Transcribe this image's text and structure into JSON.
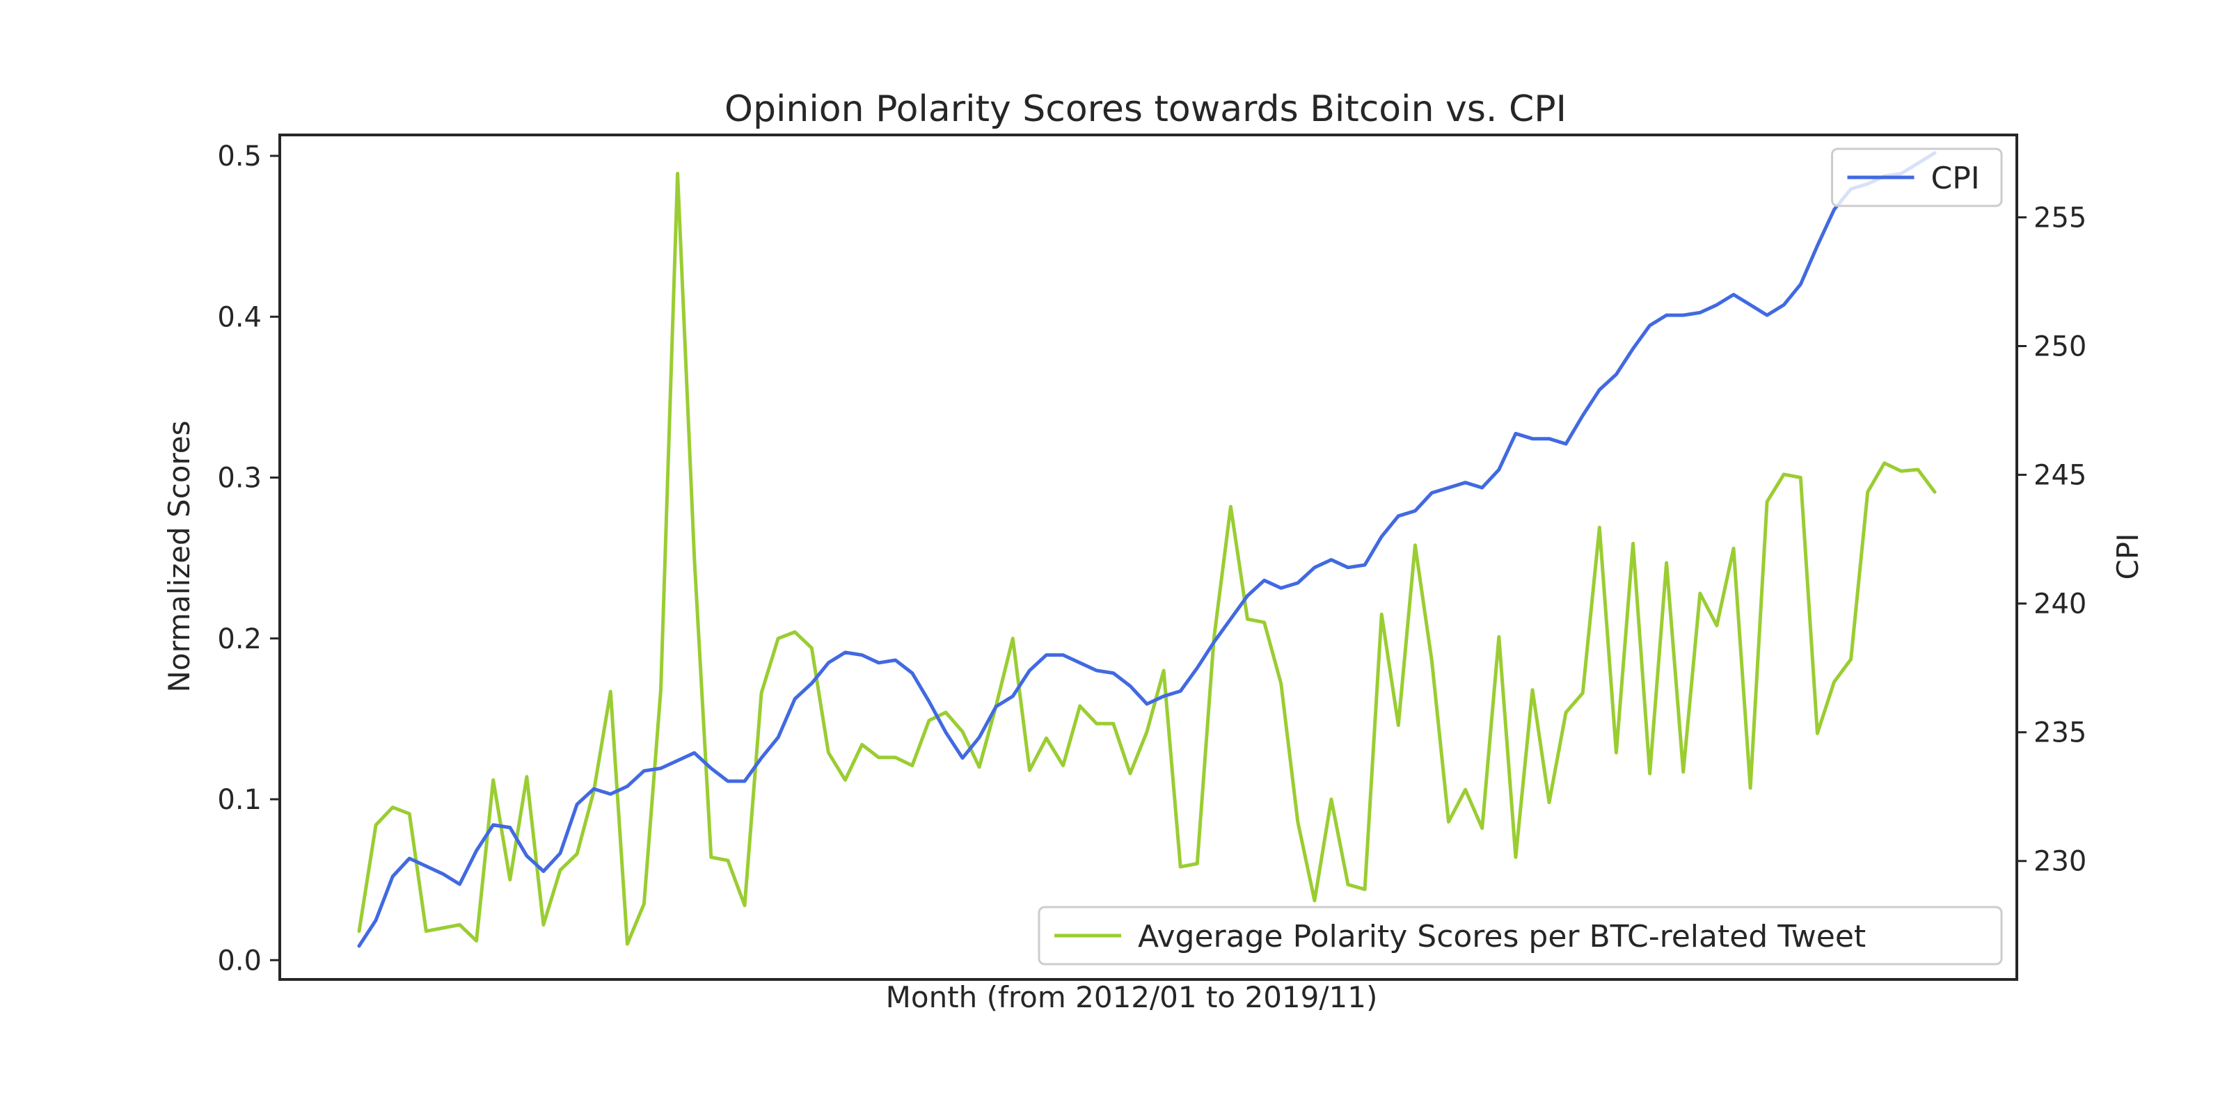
{
  "chart_data": {
    "type": "line",
    "title": "Opinion Polarity Scores towards Bitcoin vs. CPI",
    "xlabel": "Month (from 2012/01 to 2019/11)",
    "ylabel": "Normalized Scores",
    "y2label": "CPI",
    "ylim": [
      -0.012,
      0.513
    ],
    "y2lim": [
      225.4,
      258.2
    ],
    "yticks": [
      "0.0",
      "0.1",
      "0.2",
      "0.3",
      "0.4",
      "0.5"
    ],
    "y2ticks": [
      "230",
      "235",
      "240",
      "245",
      "250",
      "255"
    ],
    "x_range": [
      1,
      95
    ],
    "grid": false,
    "series": [
      {
        "name": "CPI",
        "axis": "right",
        "color": "#4169e1",
        "legend_position": "top-right",
        "values": [
          226.7,
          227.7,
          229.4,
          230.1,
          229.8,
          229.5,
          229.1,
          230.4,
          231.4,
          231.3,
          230.2,
          229.6,
          230.3,
          232.2,
          232.8,
          232.6,
          232.9,
          233.5,
          233.6,
          233.9,
          234.2,
          233.6,
          233.1,
          233.1,
          234.0,
          234.8,
          236.3,
          236.9,
          237.7,
          238.1,
          238.0,
          237.7,
          237.8,
          237.3,
          236.2,
          235.0,
          234.0,
          234.8,
          236.0,
          236.4,
          237.4,
          238.0,
          238.0,
          237.7,
          237.4,
          237.3,
          236.8,
          236.1,
          236.4,
          236.6,
          237.5,
          238.5,
          239.4,
          240.3,
          240.9,
          240.6,
          240.8,
          241.4,
          241.7,
          241.4,
          241.5,
          242.6,
          243.4,
          243.6,
          244.3,
          244.5,
          244.7,
          244.5,
          245.2,
          246.6,
          246.4,
          246.4,
          246.2,
          247.3,
          248.3,
          248.9,
          249.9,
          250.8,
          251.2,
          251.2,
          251.3,
          251.6,
          252.0,
          251.6,
          251.2,
          251.6,
          252.4,
          253.9,
          255.3,
          256.1,
          256.3,
          256.6,
          256.7,
          257.1,
          257.5
        ]
      },
      {
        "name": "Avgerage Polarity Scores per BTC-related Tweet",
        "axis": "left",
        "color": "#9acd32",
        "legend_position": "bottom-right",
        "values": [
          0.018,
          0.084,
          0.095,
          0.091,
          0.018,
          0.02,
          0.022,
          0.012,
          0.112,
          0.05,
          0.114,
          0.022,
          0.056,
          0.066,
          0.105,
          0.167,
          0.01,
          0.035,
          0.168,
          0.489,
          0.25,
          0.064,
          0.062,
          0.034,
          0.166,
          0.2,
          0.204,
          0.194,
          0.129,
          0.112,
          0.134,
          0.126,
          0.126,
          0.121,
          0.149,
          0.154,
          0.142,
          0.12,
          0.158,
          0.2,
          0.118,
          0.138,
          0.121,
          0.158,
          0.147,
          0.147,
          0.116,
          0.142,
          0.18,
          0.058,
          0.06,
          0.2,
          0.282,
          0.212,
          0.21,
          0.172,
          0.086,
          0.037,
          0.1,
          0.047,
          0.044,
          0.215,
          0.146,
          0.258,
          0.186,
          0.086,
          0.106,
          0.082,
          0.201,
          0.064,
          0.168,
          0.098,
          0.154,
          0.166,
          0.269,
          0.129,
          0.259,
          0.116,
          0.247,
          0.117,
          0.228,
          0.208,
          0.256,
          0.107,
          0.285,
          0.302,
          0.3,
          0.141,
          0.173,
          0.187,
          0.291,
          0.309,
          0.304,
          0.305,
          0.291
        ]
      }
    ]
  }
}
